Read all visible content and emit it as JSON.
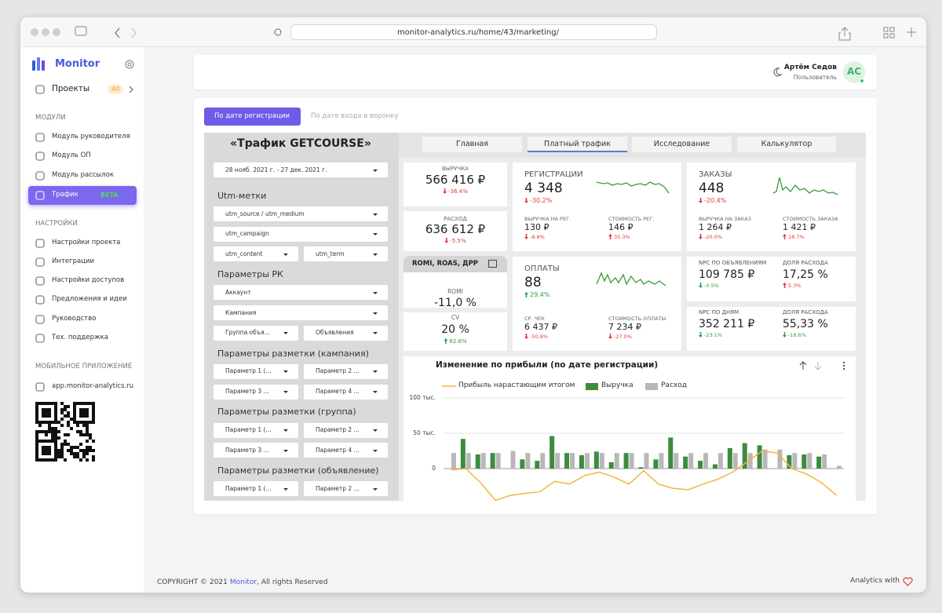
{
  "browser": {
    "url": "monitor-analytics.ru/home/43/marketing/"
  },
  "sidebar": {
    "brand": "Monitor",
    "projects": {
      "label": "Проекты",
      "badge": "40"
    },
    "sections": [
      {
        "title": "МОДУЛИ",
        "items": [
          {
            "label": "Модуль руководителя"
          },
          {
            "label": "Модуль ОП"
          },
          {
            "label": "Модуль рассылок"
          },
          {
            "label": "Трафик",
            "badge": "BETA",
            "active": true
          }
        ]
      },
      {
        "title": "НАСТРОЙКИ",
        "items": [
          {
            "label": "Настройки проекта"
          },
          {
            "label": "Интеграции"
          },
          {
            "label": "Настройки доступов"
          },
          {
            "label": "Предложения и идеи"
          },
          {
            "label": "Руководство"
          },
          {
            "label": "Тех. поддержка"
          }
        ]
      },
      {
        "title": "МОБИЛЬНОЕ ПРИЛОЖЕНИЕ",
        "items": [
          {
            "label": "app.monitor-analytics.ru"
          }
        ]
      }
    ]
  },
  "user": {
    "name": "Артём Седов",
    "role": "Пользователь",
    "initials": "АС"
  },
  "date_tabs": [
    "По дате регистрации",
    "По дате входа в воронку"
  ],
  "report": {
    "title": "«Трафик GETCOURSE»",
    "nav": [
      "Главная",
      "Платный трафик",
      "Исследование",
      "Калькулятор"
    ],
    "active_nav": 1,
    "date_range": "28 нояб. 2021 г. - 27 дек. 2021 г.",
    "filter_groups": [
      {
        "title": "Utm-метки",
        "rows": [
          [
            "utm_source / utm_medium"
          ],
          [
            "utm_campaign"
          ],
          [
            "utm_content",
            "utm_term"
          ]
        ]
      },
      {
        "title": "Параметры РК",
        "rows": [
          [
            "Аккаунт"
          ],
          [
            "Кампания"
          ],
          [
            "Группа объя...",
            "Объявления"
          ]
        ]
      },
      {
        "title": "Параметры разметки (кампания)",
        "rows": [
          [
            "Параметр 1 (...",
            "Параметр 2 ..."
          ],
          [
            "Параметр 3 ...",
            "Параметр 4 ..."
          ]
        ]
      },
      {
        "title": "Параметры разметки (группа)",
        "rows": [
          [
            "Параметр 1 (...",
            "Параметр 2 ..."
          ],
          [
            "Параметр 3 ...",
            "Параметр 4 ..."
          ]
        ]
      },
      {
        "title": "Параметры разметки (объявление)",
        "rows": [
          [
            "Параметр 1 (...",
            "Параметр 2 ..."
          ]
        ]
      }
    ],
    "small_cards": [
      {
        "label": "ВЫРУЧКА",
        "value": "566 416 ₽",
        "delta": {
          "text": "-36.4%",
          "dir": "down",
          "color": "#e53935"
        }
      },
      {
        "label": "РАСХОД",
        "value": "636 612 ₽",
        "delta": {
          "text": "-5.5%",
          "dir": "down",
          "color": "#e53935"
        }
      }
    ],
    "ratios": {
      "title": "ROMI, ROAS, ДРР",
      "cards": [
        {
          "label": "ROMI",
          "value": "-11,0 %"
        },
        {
          "label": "CV",
          "value": "20 %",
          "delta": {
            "text": "62.6%",
            "dir": "up",
            "color": "#2e9e44"
          }
        }
      ]
    },
    "big_cards": [
      {
        "label": "РЕГИСТРАЦИИ",
        "value": "4 348",
        "delta": {
          "text": "-30.2%",
          "dir": "down",
          "color": "#e53935"
        },
        "sub": [
          {
            "label": "ВЫРУЧКА НА РЕГ.",
            "value": "130 ₽",
            "delta": {
              "text": "-8.8%",
              "dir": "down",
              "color": "#e53935"
            }
          },
          {
            "label": "СТОИМОСТЬ РЕГ.",
            "value": "146 ₽",
            "delta": {
              "text": "35.3%",
              "dir": "up",
              "color": "#e53935"
            }
          }
        ]
      },
      {
        "label": "ЗАКАЗЫ",
        "value": "448",
        "delta": {
          "text": "-20.4%",
          "dir": "down",
          "color": "#e53935"
        },
        "sub": [
          {
            "label": "ВЫРУЧКА НА ЗАКАЗ",
            "value": "1 264 ₽",
            "delta": {
              "text": "-20.0%",
              "dir": "down",
              "color": "#e53935"
            }
          },
          {
            "label": "СТОИМОСТЬ ЗАКАЗА",
            "value": "1 421 ₽",
            "delta": {
              "text": "18.7%",
              "dir": "up",
              "color": "#e53935"
            }
          }
        ]
      },
      {
        "label": "ОПЛАТЫ",
        "value": "88",
        "delta": {
          "text": "29.4%",
          "dir": "up",
          "color": "#2e9e44"
        },
        "sub": [
          {
            "label": "СР. ЧЕК",
            "value": "6 437 ₽",
            "delta": {
              "text": "-50.8%",
              "dir": "down",
              "color": "#e53935"
            }
          },
          {
            "label": "СТОИМОСТЬ ОПЛАТЫ",
            "value": "7 234 ₽",
            "delta": {
              "text": "-27.0%",
              "dir": "down",
              "color": "#e53935"
            }
          }
        ]
      }
    ],
    "npc_cards": [
      {
        "label": "NPC ПО ОБЪЯВЛЕНИЯМ",
        "value": "109 785 ₽",
        "delta": {
          "text": "-0.5%",
          "dir": "down",
          "color": "#2e9e44"
        }
      },
      {
        "label": "ДОЛЯ РАСХОДА",
        "value": "17,25 %",
        "delta": {
          "text": "5.3%",
          "dir": "up",
          "color": "#e53935"
        }
      },
      {
        "label": "NPC ПО ДНЯМ",
        "value": "352 211 ₽",
        "delta": {
          "text": "-23.1%",
          "dir": "down",
          "color": "#2e9e44"
        }
      },
      {
        "label": "ДОЛЯ РАСХОДА",
        "value": "55,33 %",
        "delta": {
          "text": "-18.6%",
          "dir": "down",
          "color": "#2e9e44"
        }
      }
    ],
    "chart": {
      "type": "bar",
      "title": "Изменение по прибыли (по дате регистрации)",
      "ylim": [
        -45000,
        110000
      ],
      "yticks": [
        {
          "value": 100000,
          "label": "100 тыс."
        },
        {
          "value": 50000,
          "label": "50 тыс."
        },
        0
      ],
      "grid": true,
      "series": [
        {
          "name": "Прибыль нарастающим итогом",
          "type": "line",
          "color": "#f2b63c",
          "values": [
            -2000,
            0,
            -20000,
            -45000,
            -38000,
            -35000,
            -33000,
            -18000,
            -22000,
            -10000,
            -5000,
            -12000,
            -22000,
            -3000,
            -22000,
            -28000,
            -30000,
            -22000,
            -15000,
            -5000,
            10000,
            25000,
            22000,
            0,
            -8000,
            -20000,
            -38000
          ]
        },
        {
          "name": "Выручка",
          "type": "bar",
          "color": "#3d8b3d",
          "values": [
            0,
            42000,
            20000,
            22000,
            0,
            13000,
            11000,
            46000,
            22000,
            19000,
            24000,
            9000,
            22000,
            2000,
            13000,
            44000,
            17000,
            11000,
            6000,
            29000,
            36000,
            33000,
            0,
            19000,
            20000,
            17000,
            0
          ]
        },
        {
          "name": "Расход",
          "type": "bar",
          "color": "#b8b8b8",
          "values": [
            22000,
            22000,
            22000,
            22000,
            25000,
            22000,
            22000,
            22000,
            22000,
            22000,
            22000,
            22000,
            22000,
            22000,
            22000,
            22000,
            22000,
            22000,
            22000,
            22000,
            22000,
            27000,
            27000,
            22000,
            22000,
            20000,
            4000
          ]
        }
      ]
    }
  },
  "footer": {
    "prefix": "COPYRIGHT © 2021",
    "link": "Monitor",
    "suffix": ", All rights Reserved",
    "right": "Analytics with"
  }
}
